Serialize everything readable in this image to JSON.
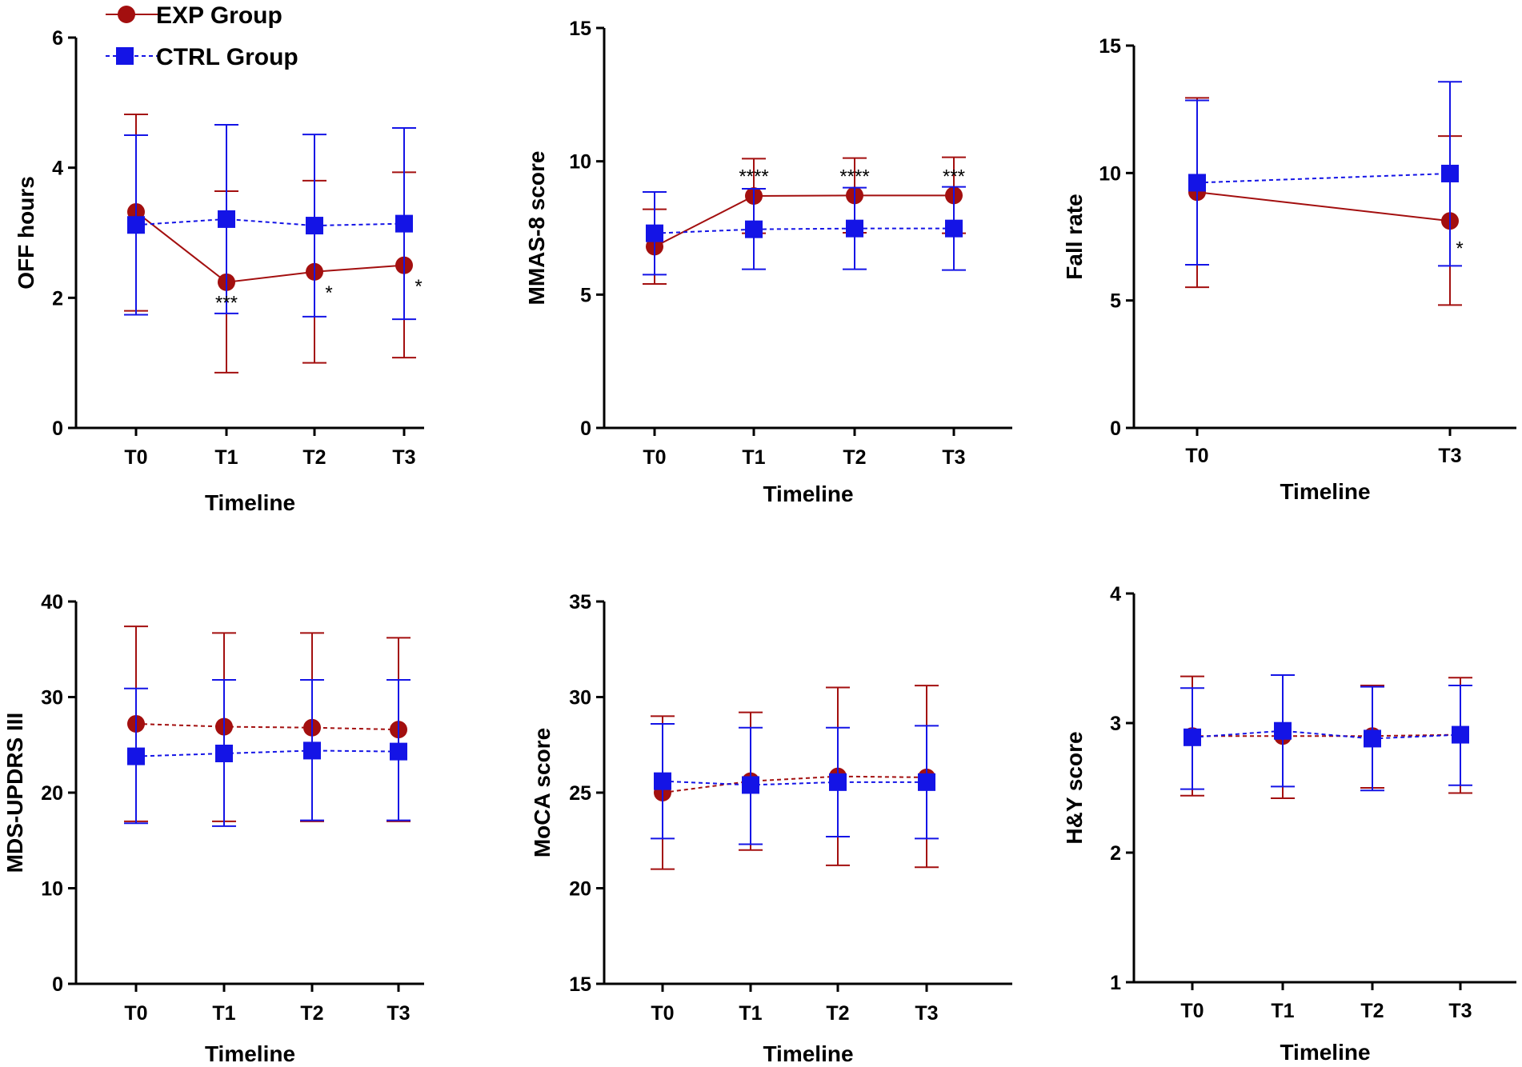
{
  "colors": {
    "exp": "#a30f0f",
    "ctrl": "#1414e6",
    "axis": "#000000"
  },
  "legend": [
    {
      "name": "EXP Group",
      "marker": "circle",
      "line": "solid",
      "color": "#a30f0f"
    },
    {
      "name": "CTRL Group",
      "marker": "square",
      "line": "dashed",
      "color": "#1414e6"
    }
  ],
  "chart_data": [
    {
      "type": "line",
      "xlabel": "Timeline",
      "ylabel": "OFF hours",
      "categories": [
        "T0",
        "T1",
        "T2",
        "T3"
      ],
      "ylim": [
        0,
        6
      ],
      "yticks": [
        0,
        2,
        4,
        6
      ],
      "series": [
        {
          "name": "EXP Group",
          "line": "solid",
          "values": [
            3.32,
            2.24,
            2.4,
            2.5
          ],
          "err_low": [
            1.8,
            0.85,
            1.0,
            1.08
          ],
          "err_high": [
            4.82,
            3.64,
            3.8,
            3.93
          ]
        },
        {
          "name": "CTRL Group",
          "line": "dashed",
          "values": [
            3.12,
            3.21,
            3.11,
            3.14
          ],
          "err_low": [
            1.74,
            1.76,
            1.71,
            1.67
          ],
          "err_high": [
            4.5,
            4.66,
            4.51,
            4.61
          ]
        }
      ],
      "annotations": [
        {
          "category": "T1",
          "y": 1.95,
          "text": "***",
          "dx": 0
        },
        {
          "category": "T2",
          "y": 2.1,
          "text": "*",
          "dx": 18
        },
        {
          "category": "T3",
          "y": 2.2,
          "text": "*",
          "dx": 18
        }
      ]
    },
    {
      "type": "line",
      "xlabel": "Timeline",
      "ylabel": "MMAS-8 score",
      "categories": [
        "T0",
        "T1",
        "T2",
        "T3"
      ],
      "ylim": [
        0,
        15
      ],
      "yticks": [
        0,
        5,
        10,
        15
      ],
      "series": [
        {
          "name": "EXP Group",
          "line": "solid",
          "values": [
            6.8,
            8.7,
            8.72,
            8.72
          ],
          "err_low": [
            5.4,
            7.3,
            7.32,
            7.3
          ],
          "err_high": [
            8.2,
            10.1,
            10.12,
            10.15
          ]
        },
        {
          "name": "CTRL Group",
          "line": "dashed",
          "values": [
            7.3,
            7.45,
            7.48,
            7.48
          ],
          "err_low": [
            5.75,
            5.95,
            5.95,
            5.92
          ],
          "err_high": [
            8.85,
            8.97,
            9.01,
            9.04
          ]
        }
      ],
      "annotations": [
        {
          "category": "T1",
          "y": 9.5,
          "text": "****",
          "dx": 0
        },
        {
          "category": "T2",
          "y": 9.5,
          "text": "****",
          "dx": 0
        },
        {
          "category": "T3",
          "y": 9.5,
          "text": "***",
          "dx": 0
        }
      ]
    },
    {
      "type": "line",
      "xlabel": "Timeline",
      "ylabel": "Fall rate",
      "categories": [
        "T0",
        "T3"
      ],
      "ylim": [
        0,
        15
      ],
      "yticks": [
        0,
        5,
        10,
        15
      ],
      "series": [
        {
          "name": "EXP Group",
          "line": "solid",
          "values": [
            9.25,
            8.12
          ],
          "err_low": [
            5.52,
            4.82
          ],
          "err_high": [
            12.95,
            11.45
          ]
        },
        {
          "name": "CTRL Group",
          "line": "dashed",
          "values": [
            9.62,
            9.98
          ],
          "err_low": [
            6.4,
            6.36
          ],
          "err_high": [
            12.85,
            13.58
          ]
        }
      ],
      "annotations": [
        {
          "category": "T3",
          "y": 7.1,
          "text": "*",
          "dx": 12
        }
      ]
    },
    {
      "type": "line",
      "xlabel": "Timeline",
      "ylabel": "MDS-UPDRS III",
      "categories": [
        "T0",
        "T1",
        "T2",
        "T3"
      ],
      "ylim": [
        0,
        40
      ],
      "yticks": [
        0,
        10,
        20,
        30,
        40
      ],
      "series": [
        {
          "name": "EXP Group",
          "line": "dashed",
          "values": [
            27.2,
            26.9,
            26.8,
            26.6
          ],
          "err_low": [
            17.0,
            17.0,
            17.0,
            17.0
          ],
          "err_high": [
            37.4,
            36.7,
            36.7,
            36.2
          ]
        },
        {
          "name": "CTRL Group",
          "line": "dashed",
          "values": [
            23.8,
            24.1,
            24.4,
            24.3
          ],
          "err_low": [
            16.8,
            16.5,
            17.1,
            17.1
          ],
          "err_high": [
            30.9,
            31.8,
            31.8,
            31.8
          ]
        }
      ],
      "annotations": []
    },
    {
      "type": "line",
      "xlabel": "Timeline",
      "ylabel": "MoCA score",
      "categories": [
        "T0",
        "T1",
        "T2",
        "T3"
      ],
      "ylim": [
        15,
        35
      ],
      "yticks": [
        15,
        20,
        25,
        30,
        35
      ],
      "series": [
        {
          "name": "EXP Group",
          "line": "dashed",
          "values": [
            25.0,
            25.6,
            25.85,
            25.8
          ],
          "err_low": [
            21.0,
            22.0,
            21.2,
            21.1
          ],
          "err_high": [
            29.0,
            29.2,
            30.5,
            30.6
          ]
        },
        {
          "name": "CTRL Group",
          "line": "dashed",
          "values": [
            25.6,
            25.4,
            25.55,
            25.55
          ],
          "err_low": [
            22.6,
            22.3,
            22.7,
            22.6
          ],
          "err_high": [
            28.6,
            28.4,
            28.4,
            28.5
          ]
        }
      ],
      "annotations": []
    },
    {
      "type": "line",
      "xlabel": "Timeline",
      "ylabel": "H&Y score",
      "categories": [
        "T0",
        "T1",
        "T2",
        "T3"
      ],
      "ylim": [
        1,
        4
      ],
      "yticks": [
        1,
        2,
        3,
        4
      ],
      "series": [
        {
          "name": "EXP Group",
          "line": "dashed",
          "values": [
            2.9,
            2.9,
            2.9,
            2.91
          ],
          "err_low": [
            2.44,
            2.42,
            2.5,
            2.46
          ],
          "err_high": [
            3.36,
            3.37,
            3.29,
            3.35
          ]
        },
        {
          "name": "CTRL Group",
          "line": "dashed",
          "values": [
            2.89,
            2.94,
            2.88,
            2.91
          ],
          "err_low": [
            2.49,
            2.51,
            2.48,
            2.52
          ],
          "err_high": [
            3.27,
            3.37,
            3.28,
            3.29
          ]
        }
      ],
      "annotations": []
    }
  ]
}
